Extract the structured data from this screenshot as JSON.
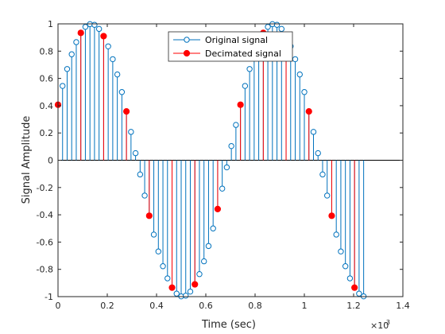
{
  "chart_data": {
    "type": "stem",
    "xlabel": "Time (sec)",
    "ylabel": "Signal Amplitude",
    "x_multiplier_label": "×10",
    "x_multiplier_exponent": "-3",
    "xlim": [
      0,
      0.0014
    ],
    "ylim": [
      -1,
      1
    ],
    "x_ticks": [
      0,
      0.0002,
      0.0004,
      0.0006,
      0.0008,
      0.001,
      0.0012,
      0.0014
    ],
    "x_tick_labels": [
      "0",
      "0.2",
      "0.4",
      "0.6",
      "0.8",
      "1",
      "1.2",
      "1.4"
    ],
    "y_ticks": [
      -1,
      -0.8,
      -0.6,
      -0.4,
      -0.2,
      0,
      0.2,
      0.4,
      0.6,
      0.8,
      1
    ],
    "y_tick_labels": [
      "-1",
      "-0.8",
      "-0.6",
      "-0.4",
      "-0.2",
      "0",
      "0.2",
      "0.4",
      "0.6",
      "0.8",
      "1"
    ],
    "legend_placement": "top-center",
    "grid": false,
    "series": [
      {
        "name": "Original signal",
        "color": "#0072BD",
        "marker": "open-circle",
        "x": [
          0,
          1.852e-05,
          3.704e-05,
          5.556e-05,
          7.407e-05,
          9.259e-05,
          0.00011111,
          0.00012963,
          0.00014815,
          0.00016667,
          0.00018519,
          0.0002037,
          0.00022222,
          0.00024074,
          0.00025926,
          0.00027778,
          0.0002963,
          0.00031481,
          0.00033333,
          0.00035185,
          0.00037037,
          0.00038889,
          0.00040741,
          0.00042593,
          0.00044444,
          0.00046296,
          0.00048148,
          0.0005,
          0.00051852,
          0.00053704,
          0.00055556,
          0.00057407,
          0.00059259,
          0.00061111,
          0.00062963,
          0.00064815,
          0.00066667,
          0.00068519,
          0.0007037,
          0.00072222,
          0.00074074,
          0.00075926,
          0.00077778,
          0.0007963,
          0.00081481,
          0.00083333,
          0.00085185,
          0.00087037,
          0.00088889,
          0.00090741,
          0.00092593,
          0.00094444,
          0.00096296,
          0.00098148,
          0.001,
          0.00101852,
          0.00103704,
          0.00105556,
          0.00107407,
          0.00109259,
          0.00111111,
          0.00112963,
          0.00114815,
          0.00116667,
          0.00118519,
          0.0012037,
          0.00122222,
          0.00124074
        ],
        "y": [
          0.407,
          0.545,
          0.669,
          0.777,
          0.866,
          0.934,
          0.978,
          0.998,
          0.993,
          0.963,
          0.91,
          0.835,
          0.741,
          0.629,
          0.5,
          0.358,
          0.208,
          0.052,
          -0.104,
          -0.259,
          -0.407,
          -0.545,
          -0.669,
          -0.777,
          -0.866,
          -0.934,
          -0.978,
          -0.998,
          -0.993,
          -0.963,
          -0.91,
          -0.835,
          -0.741,
          -0.629,
          -0.5,
          -0.358,
          -0.208,
          -0.052,
          0.104,
          0.259,
          0.407,
          0.545,
          0.669,
          0.777,
          0.866,
          0.934,
          0.978,
          0.998,
          0.993,
          0.963,
          0.91,
          0.835,
          0.741,
          0.629,
          0.5,
          0.358,
          0.208,
          0.052,
          -0.104,
          -0.259,
          -0.407,
          -0.545,
          -0.669,
          -0.777,
          -0.866,
          -0.934,
          -0.978,
          -0.998
        ]
      },
      {
        "name": "Decimated signal",
        "color": "#FF0000",
        "marker": "filled-circle",
        "x": [
          0,
          9.259e-05,
          0.00018519,
          0.00027778,
          0.00037037,
          0.00046296,
          0.00055556,
          0.00064815,
          0.00074074,
          0.00083333,
          0.00092593,
          0.00101852,
          0.00111111,
          0.0012037
        ],
        "y": [
          0.407,
          0.934,
          0.91,
          0.358,
          -0.407,
          -0.934,
          -0.91,
          -0.358,
          0.407,
          0.934,
          0.91,
          0.358,
          -0.407,
          -0.934
        ]
      }
    ]
  }
}
